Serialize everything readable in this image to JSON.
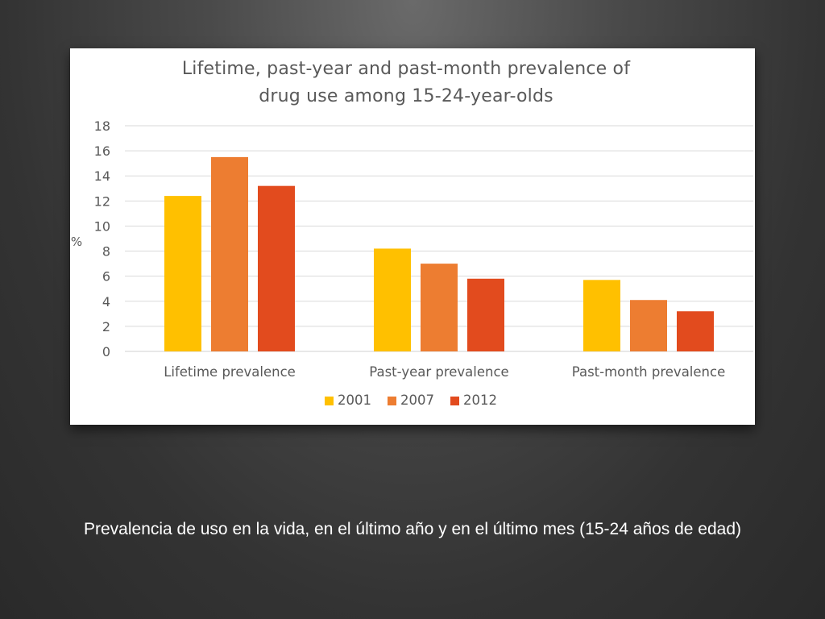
{
  "chart_data": {
    "type": "bar",
    "title_lines": [
      "Lifetime, past-year and past-month prevalence of",
      "drug use among 15-24-year-olds"
    ],
    "ylabel": "%",
    "xlabel": "",
    "ylim": [
      0,
      18
    ],
    "yticks": [
      0,
      2,
      4,
      6,
      8,
      10,
      12,
      14,
      16,
      18
    ],
    "grid": true,
    "legend_position": "bottom",
    "categories": [
      "Lifetime prevalence",
      "Past-year prevalence",
      "Past-month prevalence"
    ],
    "series": [
      {
        "name": "2001",
        "color": "#FFC000",
        "values": [
          12.4,
          8.2,
          5.7
        ]
      },
      {
        "name": "2007",
        "color": "#ED7D31",
        "values": [
          15.5,
          7.0,
          4.1
        ]
      },
      {
        "name": "2012",
        "color": "#E24B1E",
        "values": [
          13.2,
          5.8,
          3.2
        ]
      }
    ]
  },
  "caption": "Prevalencia de uso en la vida, en el último año y en el último mes (15-24 años de edad)"
}
